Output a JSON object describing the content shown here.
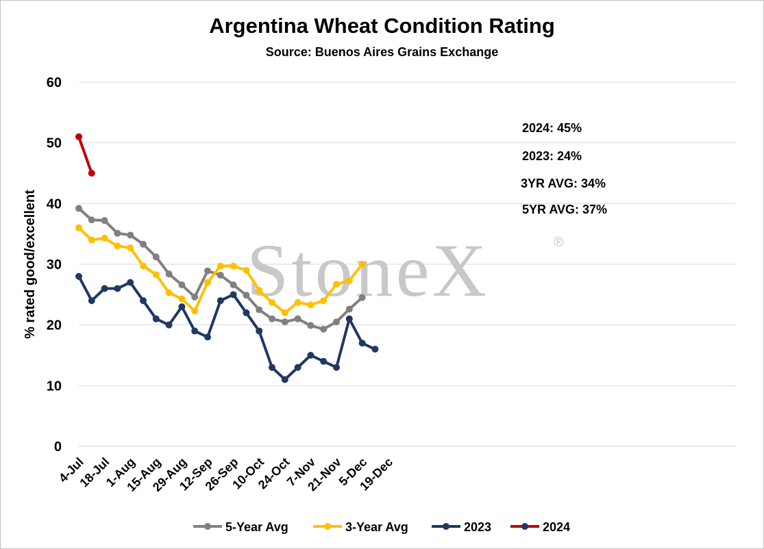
{
  "title": "Argentina Wheat Condition Rating",
  "subtitle": "Source: Buenos Aires Grains Exchange",
  "watermark": "StoneX",
  "watermark_mark": "®",
  "annotations": [
    "2024: 45%",
    "2023: 24%",
    "3YR AVG: 34%",
    "5YR AVG: 37%"
  ],
  "chart_data": {
    "type": "line",
    "title": "Argentina Wheat Condition Rating",
    "subtitle": "Source: Buenos Aires Grains Exchange",
    "xlabel": "",
    "ylabel": "% rated good/excellent",
    "ylim": [
      0,
      60
    ],
    "yticks": [
      0,
      10,
      20,
      30,
      40,
      50,
      60
    ],
    "xticks": [
      "4-Jul",
      "18-Jul",
      "1-Aug",
      "15-Aug",
      "29-Aug",
      "12-Sep",
      "26-Sep",
      "10-Oct",
      "24-Oct",
      "7-Nov",
      "21-Nov",
      "5-Dec",
      "19-Dec"
    ],
    "grid": true,
    "legend_position": "bottom",
    "series": [
      {
        "name": "5-Year Avg",
        "color": "#808080",
        "x": [
          "4-Jul",
          "11-Jul",
          "18-Jul",
          "25-Jul",
          "1-Aug",
          "8-Aug",
          "15-Aug",
          "22-Aug",
          "29-Aug",
          "5-Sep",
          "12-Sep",
          "19-Sep",
          "26-Sep",
          "3-Oct",
          "10-Oct",
          "17-Oct",
          "24-Oct",
          "31-Oct",
          "7-Nov",
          "14-Nov",
          "21-Nov",
          "28-Nov",
          "5-Dec"
        ],
        "values": [
          39.2,
          37.3,
          37.2,
          35.1,
          34.8,
          33.3,
          31.2,
          28.4,
          26.6,
          24.6,
          28.9,
          28.2,
          26.6,
          24.9,
          22.5,
          21.0,
          20.5,
          21.0,
          19.9,
          19.3,
          20.5,
          22.6,
          24.5
        ]
      },
      {
        "name": "3-Year Avg",
        "color": "#ffc000",
        "x": [
          "4-Jul",
          "11-Jul",
          "18-Jul",
          "25-Jul",
          "1-Aug",
          "8-Aug",
          "15-Aug",
          "22-Aug",
          "29-Aug",
          "5-Sep",
          "12-Sep",
          "19-Sep",
          "26-Sep",
          "3-Oct",
          "10-Oct",
          "17-Oct",
          "24-Oct",
          "31-Oct",
          "7-Nov",
          "14-Nov",
          "21-Nov",
          "28-Nov",
          "5-Dec"
        ],
        "values": [
          36.0,
          34.0,
          34.3,
          33.0,
          32.7,
          29.7,
          28.3,
          25.3,
          24.3,
          22.3,
          27.0,
          29.7,
          29.7,
          29.0,
          25.7,
          23.7,
          22.0,
          23.7,
          23.3,
          24.0,
          26.7,
          27.3,
          30.0
        ]
      },
      {
        "name": "2023",
        "color": "#1f3864",
        "x": [
          "4-Jul",
          "11-Jul",
          "18-Jul",
          "25-Jul",
          "1-Aug",
          "8-Aug",
          "15-Aug",
          "22-Aug",
          "29-Aug",
          "5-Sep",
          "12-Sep",
          "19-Sep",
          "26-Sep",
          "3-Oct",
          "10-Oct",
          "17-Oct",
          "24-Oct",
          "31-Oct",
          "7-Nov",
          "14-Nov",
          "21-Nov",
          "28-Nov",
          "5-Dec",
          "12-Dec"
        ],
        "values": [
          28,
          24,
          26,
          26,
          27,
          24,
          21,
          20,
          23,
          19,
          18,
          24,
          25,
          22,
          19,
          13,
          11,
          13,
          15,
          14,
          13,
          21,
          17,
          16
        ]
      },
      {
        "name": "2024",
        "color": "#c00000",
        "marker_color": "#1f3864",
        "x": [
          "4-Jul",
          "11-Jul"
        ],
        "values": [
          51,
          45
        ]
      }
    ]
  }
}
